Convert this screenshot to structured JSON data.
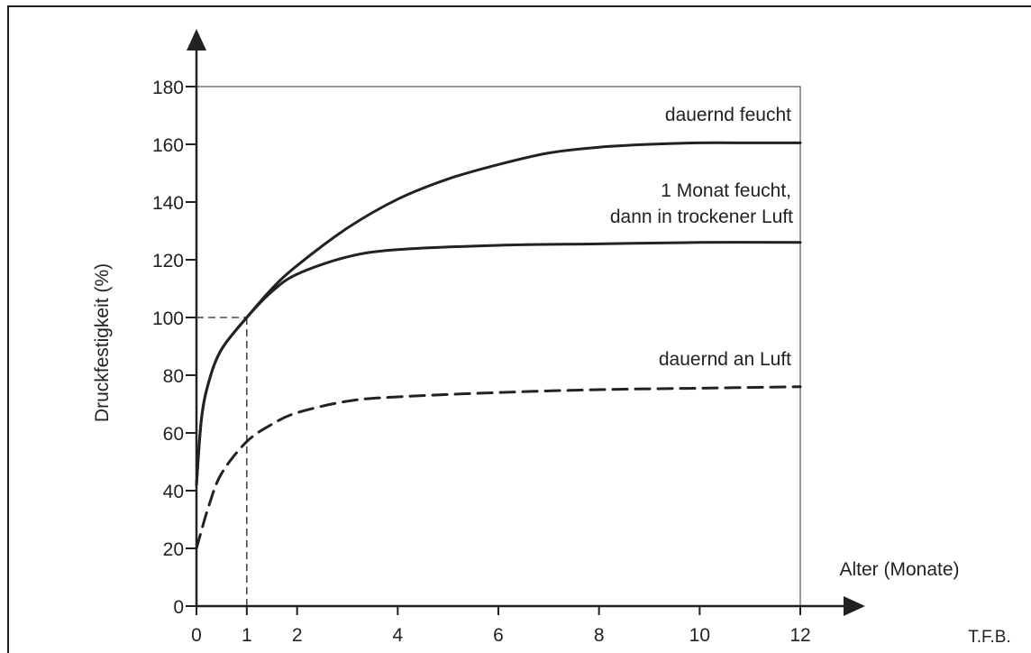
{
  "chart_data": {
    "type": "line",
    "xlabel": "Alter (Monate)",
    "ylabel": "Druckfestigkeit (%)",
    "source": "T.F.B.",
    "xlim": [
      0,
      12
    ],
    "ylim": [
      0,
      180
    ],
    "x_ticks": [
      0,
      1,
      2,
      4,
      6,
      8,
      10,
      12
    ],
    "y_ticks": [
      0,
      20,
      40,
      60,
      80,
      100,
      120,
      140,
      160,
      180
    ],
    "grid": false,
    "reference": {
      "x": 1,
      "y": 100
    },
    "series": [
      {
        "name": "dauernd feucht",
        "style": "solid",
        "points": [
          [
            0,
            42
          ],
          [
            0.1,
            65
          ],
          [
            0.25,
            78
          ],
          [
            0.5,
            89
          ],
          [
            1,
            100
          ],
          [
            1.5,
            110
          ],
          [
            2,
            118
          ],
          [
            3,
            131
          ],
          [
            4,
            141
          ],
          [
            5,
            148
          ],
          [
            6,
            153
          ],
          [
            7,
            157
          ],
          [
            8,
            159
          ],
          [
            9,
            160
          ],
          [
            10,
            160.5
          ],
          [
            11,
            160.5
          ],
          [
            12,
            160.5
          ]
        ]
      },
      {
        "name": "1 Monat feucht, dann in trockener Luft",
        "label_lines": [
          "1 Monat feucht,",
          "dann in trockener Luft"
        ],
        "style": "solid",
        "points": [
          [
            0,
            42
          ],
          [
            0.1,
            65
          ],
          [
            0.25,
            78
          ],
          [
            0.5,
            89
          ],
          [
            1,
            100
          ],
          [
            1.5,
            109
          ],
          [
            2,
            115
          ],
          [
            3,
            121
          ],
          [
            4,
            123.5
          ],
          [
            6,
            125
          ],
          [
            8,
            125.5
          ],
          [
            10,
            126
          ],
          [
            12,
            126
          ]
        ]
      },
      {
        "name": "dauernd an Luft",
        "style": "dashed",
        "points": [
          [
            0,
            20
          ],
          [
            0.25,
            35
          ],
          [
            0.5,
            46
          ],
          [
            1,
            57
          ],
          [
            1.5,
            63
          ],
          [
            2,
            67
          ],
          [
            3,
            71
          ],
          [
            4,
            72.5
          ],
          [
            6,
            74
          ],
          [
            8,
            75
          ],
          [
            10,
            75.5
          ],
          [
            12,
            76
          ]
        ]
      }
    ]
  }
}
